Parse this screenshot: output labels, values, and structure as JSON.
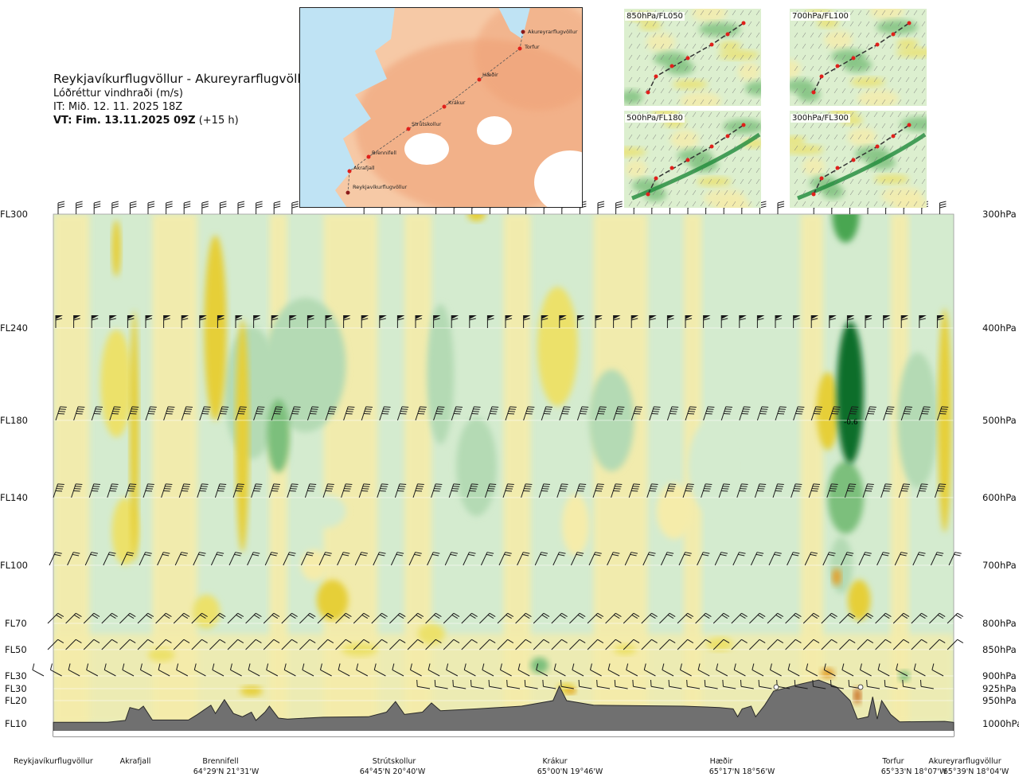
{
  "header": {
    "title": "Reykjavíkurflugvöllur - Akureyrarflugvöllur",
    "subtitle": "Lóðréttur vindhraði (m/s)",
    "it_line": "IT: Mið. 12. 11. 2025 18Z",
    "vt_bold": "VT: Fim. 13.11.2025 09Z",
    "vt_rest": " (+15 h)"
  },
  "chart_data": {
    "type": "heatmap",
    "title": "Reykjavíkurflugvöllur - Akureyrarflugvöllur",
    "variable": "Lóðréttur vindhraði (m/s)",
    "flight_levels": [
      "FL300",
      "FL240",
      "FL180",
      "FL140",
      "FL100",
      "FL70",
      "FL50",
      "FL30",
      "FL30",
      "FL20",
      "FL10"
    ],
    "pressure_levels": [
      "300hPa",
      "400hPa",
      "500hPa",
      "600hPa",
      "700hPa",
      "800hPa",
      "850hPa",
      "900hPa",
      "925hPa",
      "950hPa",
      "1000hPa"
    ],
    "pressure_values": [
      300,
      400,
      500,
      600,
      700,
      800,
      850,
      900,
      925,
      950,
      1000
    ],
    "contour_annotation": "-0.6",
    "waypoints": [
      {
        "name": "Reykjavíkurflugvöllur",
        "coord": "",
        "frac": 0.0
      },
      {
        "name": "Akrafjall",
        "coord": "",
        "frac": 0.09
      },
      {
        "name": "Brennifell",
        "coord": "64°29'N 21°31'W",
        "frac": 0.187
      },
      {
        "name": "Strútskollur",
        "coord": "64°45'N 20°40'W",
        "frac": 0.376
      },
      {
        "name": "Krákur",
        "coord": "65°00'N 19°46'W",
        "frac": 0.562
      },
      {
        "name": "Hæðir",
        "coord": "65°17'N 18°56'W",
        "frac": 0.745
      },
      {
        "name": "Torfur",
        "coord": "65°33'N 18°07'W",
        "frac": 0.945
      },
      {
        "name": "Akureyrarflugvöllur",
        "coord": "65°39'N 18°04'W",
        "frac": 1.0
      }
    ],
    "route_map_labels": [
      "Akureyrarflugvöllur",
      "Torfur",
      "Hæðir",
      "Krákur",
      "Strútskollur",
      "Brennifell",
      "Akrafjall",
      "Reykjavíkurflugvöllur"
    ],
    "mini_maps": [
      "850hPa/FL050",
      "700hPa/FL100",
      "500hPa/FL180",
      "300hPa/FL300"
    ],
    "terrain_profile": [
      {
        "x": 0.0,
        "p": 997
      },
      {
        "x": 0.06,
        "p": 997
      },
      {
        "x": 0.08,
        "p": 993
      },
      {
        "x": 0.085,
        "p": 965
      },
      {
        "x": 0.095,
        "p": 970
      },
      {
        "x": 0.1,
        "p": 962
      },
      {
        "x": 0.11,
        "p": 992
      },
      {
        "x": 0.15,
        "p": 992
      },
      {
        "x": 0.16,
        "p": 980
      },
      {
        "x": 0.175,
        "p": 960
      },
      {
        "x": 0.18,
        "p": 978
      },
      {
        "x": 0.19,
        "p": 948
      },
      {
        "x": 0.2,
        "p": 978
      },
      {
        "x": 0.21,
        "p": 985
      },
      {
        "x": 0.22,
        "p": 975
      },
      {
        "x": 0.225,
        "p": 993
      },
      {
        "x": 0.235,
        "p": 975
      },
      {
        "x": 0.24,
        "p": 962
      },
      {
        "x": 0.25,
        "p": 988
      },
      {
        "x": 0.26,
        "p": 990
      },
      {
        "x": 0.3,
        "p": 986
      },
      {
        "x": 0.35,
        "p": 985
      },
      {
        "x": 0.37,
        "p": 975
      },
      {
        "x": 0.38,
        "p": 952
      },
      {
        "x": 0.39,
        "p": 980
      },
      {
        "x": 0.41,
        "p": 975
      },
      {
        "x": 0.42,
        "p": 955
      },
      {
        "x": 0.43,
        "p": 972
      },
      {
        "x": 0.47,
        "p": 968
      },
      {
        "x": 0.52,
        "p": 962
      },
      {
        "x": 0.555,
        "p": 950
      },
      {
        "x": 0.562,
        "p": 920
      },
      {
        "x": 0.57,
        "p": 950
      },
      {
        "x": 0.6,
        "p": 960
      },
      {
        "x": 0.7,
        "p": 962
      },
      {
        "x": 0.74,
        "p": 965
      },
      {
        "x": 0.755,
        "p": 968
      },
      {
        "x": 0.76,
        "p": 985
      },
      {
        "x": 0.765,
        "p": 968
      },
      {
        "x": 0.775,
        "p": 962
      },
      {
        "x": 0.78,
        "p": 985
      },
      {
        "x": 0.79,
        "p": 960
      },
      {
        "x": 0.8,
        "p": 930
      },
      {
        "x": 0.83,
        "p": 916
      },
      {
        "x": 0.85,
        "p": 908
      },
      {
        "x": 0.87,
        "p": 922
      },
      {
        "x": 0.885,
        "p": 950
      },
      {
        "x": 0.893,
        "p": 990
      },
      {
        "x": 0.905,
        "p": 985
      },
      {
        "x": 0.91,
        "p": 942
      },
      {
        "x": 0.915,
        "p": 990
      },
      {
        "x": 0.92,
        "p": 950
      },
      {
        "x": 0.93,
        "p": 980
      },
      {
        "x": 0.94,
        "p": 996
      },
      {
        "x": 0.99,
        "p": 995
      },
      {
        "x": 1.0,
        "p": 997
      }
    ],
    "field_blobs": [
      {
        "x": 0.07,
        "p": 460,
        "w": 0.035,
        "h": 120,
        "v": 0.3
      },
      {
        "x": 0.08,
        "p": 650,
        "w": 0.03,
        "h": 100,
        "v": 0.25
      },
      {
        "x": 0.18,
        "p": 400,
        "w": 0.025,
        "h": 180,
        "v": 0.6
      },
      {
        "x": 0.17,
        "p": 780,
        "w": 0.03,
        "h": 60,
        "v": 0.4
      },
      {
        "x": 0.22,
        "p": 470,
        "w": 0.06,
        "h": 150,
        "v": -0.15
      },
      {
        "x": 0.25,
        "p": 520,
        "w": 0.025,
        "h": 90,
        "v": -0.4
      },
      {
        "x": 0.28,
        "p": 440,
        "w": 0.09,
        "h": 140,
        "v": -0.2
      },
      {
        "x": 0.29,
        "p": 700,
        "w": 0.03,
        "h": 50,
        "v": 0.2
      },
      {
        "x": 0.3,
        "p": 620,
        "w": 0.05,
        "h": 50,
        "v": -0.1
      },
      {
        "x": 0.31,
        "p": 760,
        "w": 0.035,
        "h": 70,
        "v": 0.45
      },
      {
        "x": 0.43,
        "p": 450,
        "w": 0.03,
        "h": 150,
        "v": -0.25
      },
      {
        "x": 0.42,
        "p": 820,
        "w": 0.03,
        "h": 40,
        "v": 0.25
      },
      {
        "x": 0.47,
        "p": 560,
        "w": 0.045,
        "h": 130,
        "v": -0.12
      },
      {
        "x": 0.56,
        "p": 420,
        "w": 0.045,
        "h": 120,
        "v": 0.3
      },
      {
        "x": 0.58,
        "p": 640,
        "w": 0.03,
        "h": 90,
        "v": 0.2
      },
      {
        "x": 0.62,
        "p": 500,
        "w": 0.05,
        "h": 120,
        "v": -0.12
      },
      {
        "x": 0.69,
        "p": 620,
        "w": 0.04,
        "h": 80,
        "v": 0.2
      },
      {
        "x": 0.73,
        "p": 560,
        "w": 0.05,
        "h": 120,
        "v": -0.1
      },
      {
        "x": 0.86,
        "p": 490,
        "w": 0.025,
        "h": 90,
        "v": 0.55
      },
      {
        "x": 0.875,
        "p": 700,
        "w": 0.025,
        "h": 90,
        "v": -0.15
      },
      {
        "x": 0.88,
        "p": 300,
        "w": 0.03,
        "h": 100,
        "v": -0.8
      },
      {
        "x": 0.885,
        "p": 470,
        "w": 0.03,
        "h": 160,
        "v": -1.6
      },
      {
        "x": 0.88,
        "p": 600,
        "w": 0.04,
        "h": 100,
        "v": -0.5
      },
      {
        "x": 0.895,
        "p": 760,
        "w": 0.025,
        "h": 70,
        "v": 0.6
      },
      {
        "x": 0.87,
        "p": 720,
        "w": 0.01,
        "h": 30,
        "v": 1.2
      },
      {
        "x": 0.96,
        "p": 500,
        "w": 0.045,
        "h": 160,
        "v": -0.15
      },
      {
        "x": 0.99,
        "p": 500,
        "w": 0.015,
        "h": 260,
        "v": 0.45
      },
      {
        "x": 0.07,
        "p": 330,
        "w": 0.01,
        "h": 50,
        "v": 0.5
      },
      {
        "x": 0.09,
        "p": 520,
        "w": 0.01,
        "h": 300,
        "v": 0.45
      },
      {
        "x": 0.21,
        "p": 520,
        "w": 0.015,
        "h": 280,
        "v": 0.45
      },
      {
        "x": 0.22,
        "p": 930,
        "w": 0.025,
        "h": 20,
        "v": 0.5
      },
      {
        "x": 0.57,
        "p": 925,
        "w": 0.02,
        "h": 20,
        "v": 0.6
      },
      {
        "x": 0.575,
        "p": 930,
        "w": 0.01,
        "h": 12,
        "v": 1.3
      },
      {
        "x": 0.86,
        "p": 895,
        "w": 0.015,
        "h": 20,
        "v": 1.1
      },
      {
        "x": 0.893,
        "p": 940,
        "w": 0.008,
        "h": 35,
        "v": 1.6
      },
      {
        "x": 0.47,
        "p": 300,
        "w": 0.02,
        "h": 25,
        "v": 0.5
      },
      {
        "x": 0.635,
        "p": 850,
        "w": 0.025,
        "h": 20,
        "v": 0.35
      },
      {
        "x": 0.54,
        "p": 880,
        "w": 0.02,
        "h": 30,
        "v": -0.3
      },
      {
        "x": 0.945,
        "p": 900,
        "w": 0.012,
        "h": 20,
        "v": -0.35
      },
      {
        "x": 0.74,
        "p": 840,
        "w": 0.03,
        "h": 25,
        "v": 0.35
      },
      {
        "x": 0.34,
        "p": 850,
        "w": 0.04,
        "h": 25,
        "v": 0.3
      },
      {
        "x": 0.12,
        "p": 860,
        "w": 0.03,
        "h": 25,
        "v": 0.3
      }
    ],
    "wind_rows": [
      {
        "p": 300,
        "spacing": 22.6,
        "start": 73,
        "barbs": 3,
        "pennant": 0,
        "shaft": 14,
        "dir": "N",
        "skip": [
          400,
          420,
          440,
          1000
        ]
      },
      {
        "p": 400,
        "spacing": 22.6,
        "start": 70,
        "barbs": 1,
        "pennant": 1,
        "shaft": 16,
        "dir": "N"
      },
      {
        "p": 500,
        "spacing": 22.6,
        "start": 70,
        "barbs": 4,
        "pennant": 0,
        "shaft": 18,
        "dir": "NNE"
      },
      {
        "p": 600,
        "spacing": 22.6,
        "start": 67,
        "barbs": 4,
        "pennant": 0,
        "shaft": 18,
        "dir": "NNE"
      },
      {
        "p": 700,
        "spacing": 22.6,
        "start": 62,
        "barbs": 2,
        "pennant": 0,
        "shaft": 18,
        "dir": "NNE2"
      },
      {
        "p": 800,
        "spacing": 22.6,
        "start": 60,
        "barbs": 2,
        "pennant": 0,
        "shaft": 18,
        "dir": "NE"
      },
      {
        "p": 850,
        "spacing": 22.6,
        "start": 60,
        "barbs": 1,
        "pennant": 0,
        "shaft": 18,
        "dir": "NE"
      },
      {
        "p": 900,
        "spacing": 22.6,
        "start": 55,
        "barbs": 1,
        "pennant": 0,
        "shaft": 16,
        "dir": "NW"
      },
      {
        "p": 925,
        "spacing": 22.6,
        "start": 540,
        "barbs": 1,
        "pennant": 0,
        "shaft": 16,
        "dir": "W"
      }
    ],
    "colors": {
      "strong_down_dark": "#0c6e2c",
      "strong_down": "#1e8a3a",
      "down_3": "#4aa651",
      "down_2": "#7cbf7c",
      "down_1": "#b4dab4",
      "down_0": "#d4ebcf",
      "neutral": "#fbfbe6",
      "up_0": "#f5ecaa",
      "up_1": "#ece16a",
      "up_2": "#e6cf38",
      "up_3": "#e3a02a",
      "up_4": "#c76a1a",
      "terrain": "#707070",
      "sea": "#bfe3f4",
      "land_low": "#f6c9a6",
      "land_high": "#ef9f73"
    }
  }
}
